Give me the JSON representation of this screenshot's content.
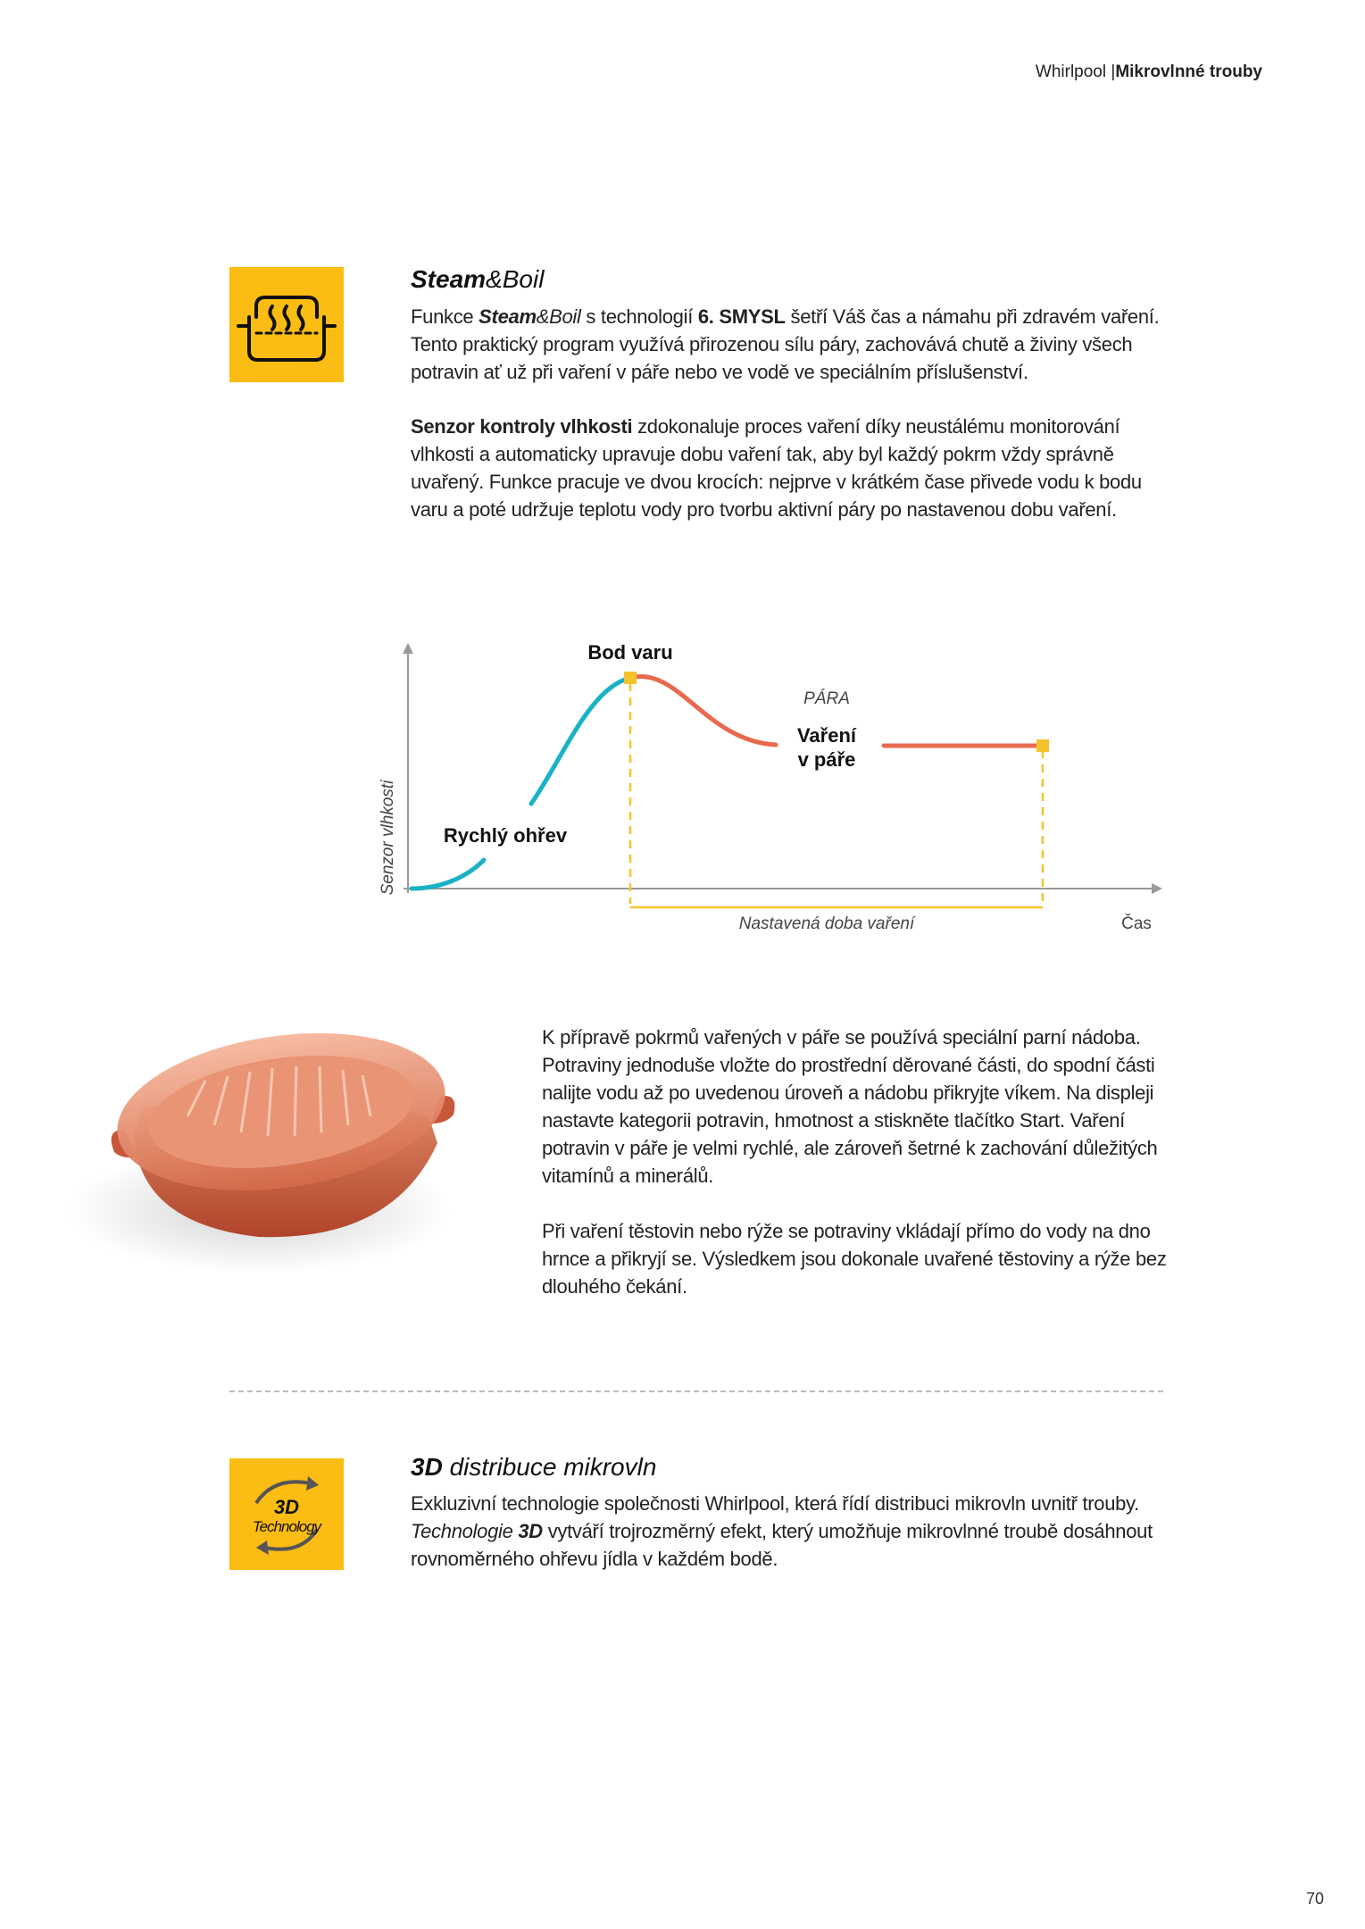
{
  "header": {
    "brand": "Whirlpool",
    "separator": "|",
    "section": "Mikrovlnné trouby"
  },
  "steam_boil": {
    "title": [
      "Steam",
      "&Boil"
    ],
    "paragraph1": [
      "Funkce ",
      "Steam",
      "&Boil",
      " s technologií ",
      "6. SMYSL",
      " šetří  Váš čas a námahu při zdravém vaření. Tento praktický program využívá přirozenou sílu páry, zachovává chutě a živiny všech potravin ať už při vaření v páře nebo ve vodě ve speciálním příslušenství."
    ],
    "paragraph2": [
      "Senzor kontroly vlhkosti",
      " zdokonaluje proces vaření díky neustálému monitorování vlhkosti a automaticky upravuje dobu vaření tak, aby byl každý pokrm vždy správně uvařený. Funkce pracuje ve dvou krocích: nejprve v krátkém čase přivede vodu k bodu varu a poté udržuje teplotu vody pro tvorbu aktivní páry po nastavenou dobu vaření."
    ]
  },
  "diagram": {
    "boiling_point": "Bod varu",
    "steam": "PÁRA",
    "steaming": [
      "Vaření",
      "v páře"
    ],
    "fast_heating": "Rychlý ohřev",
    "y_axis_label": "Senzor vlhkosti",
    "set_time": "Nastavená doba vaření",
    "x_axis_label": "Čas"
  },
  "steamer": {
    "paragraph1": "K přípravě pokrmů vařených v páře se používá speciální parní nádoba. Potraviny jednoduše vložte do prostřední děrované části, do spodní části nalijte vodu až po uvedenou úroveň a nádobu přikryjte víkem. Na displeji nastavte kategorii potravin, hmotnost a stiskněte tlačítko Start. Vaření potravin v páře je velmi rychlé, ale zároveň šetrné k zachování důležitých vitamínů a minerálů.",
    "paragraph2": "Při vaření těstovin nebo rýže se potraviny vkládají přímo do vody na dno hrnce a přikryjí se. Výsledkem jsou dokonale uvařené těstoviny a rýže bez dlouhého čekání."
  },
  "distribution_3d": {
    "icon": [
      "3D",
      "Technology"
    ],
    "title": [
      "3D",
      " distribuce mikrovln"
    ],
    "paragraph": [
      "Exkluzivní technologie společnosti Whirlpool, která řídí distribuci mikrovln uvnitř trouby. ",
      "Technologie ",
      "3D",
      " vytváří trojrozměrný efekt, který umožňuje mikrovlnné troubě dosáhnout rovnoměrného ohřevu jídla v každém bodě."
    ]
  },
  "page_number": "70"
}
